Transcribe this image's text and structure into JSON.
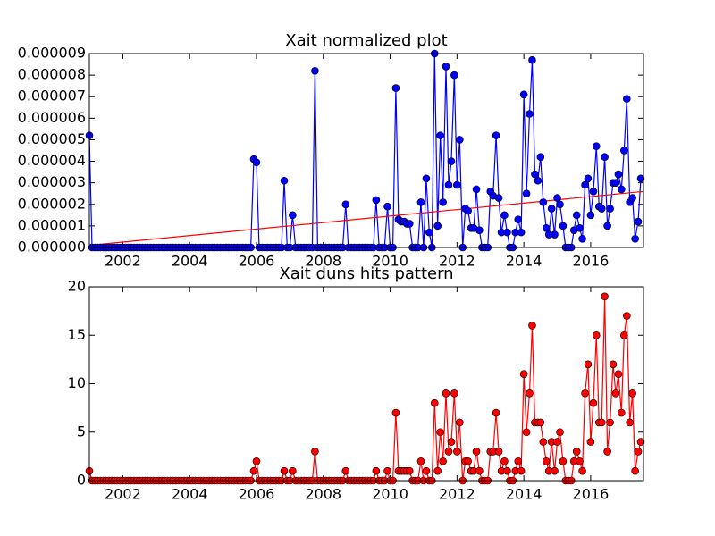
{
  "chart_data": [
    {
      "type": "line",
      "title": "Xait normalized plot",
      "x": [
        2001,
        2001.08,
        2001.17,
        2001.25,
        2001.33,
        2001.42,
        2001.5,
        2001.58,
        2001.67,
        2001.75,
        2001.83,
        2001.92,
        2002,
        2002.08,
        2002.17,
        2002.25,
        2002.33,
        2002.42,
        2002.5,
        2002.58,
        2002.67,
        2002.75,
        2002.83,
        2002.92,
        2003,
        2003.08,
        2003.17,
        2003.25,
        2003.33,
        2003.42,
        2003.5,
        2003.58,
        2003.67,
        2003.75,
        2003.83,
        2003.92,
        2004,
        2004.08,
        2004.17,
        2004.25,
        2004.33,
        2004.42,
        2004.5,
        2004.58,
        2004.67,
        2004.75,
        2004.83,
        2004.92,
        2005,
        2005.08,
        2005.17,
        2005.25,
        2005.33,
        2005.42,
        2005.5,
        2005.58,
        2005.67,
        2005.75,
        2005.83,
        2005.92,
        2006,
        2006.08,
        2006.17,
        2006.25,
        2006.33,
        2006.42,
        2006.5,
        2006.58,
        2006.67,
        2006.75,
        2006.83,
        2006.92,
        2007,
        2007.08,
        2007.17,
        2007.25,
        2007.33,
        2007.42,
        2007.5,
        2007.58,
        2007.67,
        2007.75,
        2007.83,
        2007.92,
        2008,
        2008.08,
        2008.17,
        2008.25,
        2008.33,
        2008.42,
        2008.5,
        2008.58,
        2008.67,
        2008.75,
        2008.83,
        2008.92,
        2009,
        2009.08,
        2009.17,
        2009.25,
        2009.33,
        2009.42,
        2009.5,
        2009.58,
        2009.67,
        2009.75,
        2009.83,
        2009.92,
        2010,
        2010.08,
        2010.17,
        2010.25,
        2010.33,
        2010.42,
        2010.5,
        2010.58,
        2010.67,
        2010.75,
        2010.83,
        2010.92,
        2011,
        2011.08,
        2011.17,
        2011.25,
        2011.33,
        2011.42,
        2011.5,
        2011.58,
        2011.67,
        2011.75,
        2011.83,
        2011.92,
        2012,
        2012.08,
        2012.17,
        2012.25,
        2012.33,
        2012.42,
        2012.5,
        2012.58,
        2012.67,
        2012.75,
        2012.83,
        2012.92,
        2013,
        2013.08,
        2013.17,
        2013.25,
        2013.33,
        2013.42,
        2013.5,
        2013.58,
        2013.67,
        2013.75,
        2013.83,
        2013.92,
        2014,
        2014.08,
        2014.17,
        2014.25,
        2014.33,
        2014.42,
        2014.5,
        2014.58,
        2014.67,
        2014.75,
        2014.83,
        2014.92,
        2015,
        2015.08,
        2015.17,
        2015.25,
        2015.33,
        2015.42,
        2015.5,
        2015.58,
        2015.67,
        2015.75,
        2015.83,
        2015.92,
        2016,
        2016.08,
        2016.17,
        2016.25,
        2016.33,
        2016.42,
        2016.5,
        2016.58,
        2016.67,
        2016.75,
        2016.83,
        2016.92,
        2017,
        2017.08,
        2017.17,
        2017.25,
        2017.33,
        2017.42,
        2017.5
      ],
      "series": [
        {
          "color": "#0000ff",
          "values": [
            5.2e-06,
            0,
            0,
            0,
            0,
            0,
            0,
            0,
            0,
            0,
            0,
            0,
            0,
            0,
            0,
            0,
            0,
            0,
            0,
            0,
            0,
            0,
            0,
            0,
            0,
            0,
            0,
            0,
            0,
            0,
            0,
            0,
            0,
            0,
            0,
            0,
            0,
            0,
            0,
            0,
            0,
            0,
            0,
            0,
            0,
            0,
            0,
            0,
            0,
            0,
            0,
            0,
            0,
            0,
            0,
            0,
            0,
            0,
            0,
            4.1e-06,
            3.95e-06,
            0,
            0,
            0,
            0,
            0,
            0,
            0,
            0,
            0,
            3.1e-06,
            0,
            0,
            1.5e-06,
            0,
            0,
            0,
            0,
            0,
            0,
            0,
            8.2e-06,
            0,
            0,
            0,
            0,
            0,
            0,
            0,
            0,
            0,
            0,
            2e-06,
            0,
            0,
            0,
            0,
            0,
            0,
            0,
            0,
            0,
            0,
            2.2e-06,
            0,
            0,
            0,
            1.9e-06,
            0,
            0,
            7.4e-06,
            1.3e-06,
            1.2e-06,
            1.2e-06,
            1.1e-06,
            1.1e-06,
            0,
            0,
            0,
            2.1e-06,
            0,
            3.2e-06,
            7e-07,
            0,
            9e-06,
            1e-06,
            5.2e-06,
            2.1e-06,
            8.4e-06,
            2.9e-06,
            4e-06,
            8e-06,
            2.9e-06,
            5e-06,
            0,
            1.8e-06,
            1.7e-06,
            9e-07,
            9e-07,
            2.7e-06,
            8e-07,
            0,
            0,
            0,
            2.6e-06,
            2.4e-06,
            5.2e-06,
            2.3e-06,
            7e-07,
            1.5e-06,
            7e-07,
            0,
            0,
            7e-07,
            1.3e-06,
            7e-07,
            7.1e-06,
            2.5e-06,
            6.2e-06,
            8.7e-06,
            3.4e-06,
            3.1e-06,
            4.2e-06,
            2.1e-06,
            9e-07,
            6e-07,
            1.8e-06,
            6e-07,
            2.3e-06,
            2e-06,
            1e-06,
            0,
            0,
            0,
            8e-07,
            1.5e-06,
            9e-07,
            4e-07,
            2.9e-06,
            3.2e-06,
            1.5e-06,
            2.6e-06,
            4.7e-06,
            1.9e-06,
            1.8e-06,
            4.2e-06,
            1e-06,
            1.8e-06,
            3e-06,
            3e-06,
            3.4e-06,
            2.7e-06,
            4.5e-06,
            6.9e-06,
            2.1e-06,
            2.3e-06,
            4e-07,
            1.2e-06,
            3.2e-06
          ]
        }
      ],
      "trend": {
        "color": "#ff0000",
        "x": [
          2001,
          2017.58
        ],
        "values": [
          1e-07,
          2.6e-06
        ]
      },
      "xlim": [
        2001,
        2017.58
      ],
      "xticks": [
        2002,
        2004,
        2006,
        2008,
        2010,
        2012,
        2014,
        2016
      ],
      "ylim": [
        0,
        9e-06
      ],
      "yticks": [
        {
          "value": 0,
          "label": "0.000000"
        },
        {
          "value": 1e-06,
          "label": "0.000001"
        },
        {
          "value": 2e-06,
          "label": "0.000002"
        },
        {
          "value": 3e-06,
          "label": "0.000003"
        },
        {
          "value": 4e-06,
          "label": "0.000004"
        },
        {
          "value": 5e-06,
          "label": "0.000005"
        },
        {
          "value": 6e-06,
          "label": "0.000006"
        },
        {
          "value": 7e-06,
          "label": "0.000007"
        },
        {
          "value": 8e-06,
          "label": "0.000008"
        },
        {
          "value": 9e-06,
          "label": "0.000009"
        }
      ]
    },
    {
      "type": "line",
      "title": "Xait duns hits pattern",
      "x": [
        2001,
        2001.08,
        2001.17,
        2001.25,
        2001.33,
        2001.42,
        2001.5,
        2001.58,
        2001.67,
        2001.75,
        2001.83,
        2001.92,
        2002,
        2002.08,
        2002.17,
        2002.25,
        2002.33,
        2002.42,
        2002.5,
        2002.58,
        2002.67,
        2002.75,
        2002.83,
        2002.92,
        2003,
        2003.08,
        2003.17,
        2003.25,
        2003.33,
        2003.42,
        2003.5,
        2003.58,
        2003.67,
        2003.75,
        2003.83,
        2003.92,
        2004,
        2004.08,
        2004.17,
        2004.25,
        2004.33,
        2004.42,
        2004.5,
        2004.58,
        2004.67,
        2004.75,
        2004.83,
        2004.92,
        2005,
        2005.08,
        2005.17,
        2005.25,
        2005.33,
        2005.42,
        2005.5,
        2005.58,
        2005.67,
        2005.75,
        2005.83,
        2005.92,
        2006,
        2006.08,
        2006.17,
        2006.25,
        2006.33,
        2006.42,
        2006.5,
        2006.58,
        2006.67,
        2006.75,
        2006.83,
        2006.92,
        2007,
        2007.08,
        2007.17,
        2007.25,
        2007.33,
        2007.42,
        2007.5,
        2007.58,
        2007.67,
        2007.75,
        2007.83,
        2007.92,
        2008,
        2008.08,
        2008.17,
        2008.25,
        2008.33,
        2008.42,
        2008.5,
        2008.58,
        2008.67,
        2008.75,
        2008.83,
        2008.92,
        2009,
        2009.08,
        2009.17,
        2009.25,
        2009.33,
        2009.42,
        2009.5,
        2009.58,
        2009.67,
        2009.75,
        2009.83,
        2009.92,
        2010,
        2010.08,
        2010.17,
        2010.25,
        2010.33,
        2010.42,
        2010.5,
        2010.58,
        2010.67,
        2010.75,
        2010.83,
        2010.92,
        2011,
        2011.08,
        2011.17,
        2011.25,
        2011.33,
        2011.42,
        2011.5,
        2011.58,
        2011.67,
        2011.75,
        2011.83,
        2011.92,
        2012,
        2012.08,
        2012.17,
        2012.25,
        2012.33,
        2012.42,
        2012.5,
        2012.58,
        2012.67,
        2012.75,
        2012.83,
        2012.92,
        2013,
        2013.08,
        2013.17,
        2013.25,
        2013.33,
        2013.42,
        2013.5,
        2013.58,
        2013.67,
        2013.75,
        2013.83,
        2013.92,
        2014,
        2014.08,
        2014.17,
        2014.25,
        2014.33,
        2014.42,
        2014.5,
        2014.58,
        2014.67,
        2014.75,
        2014.83,
        2014.92,
        2015,
        2015.08,
        2015.17,
        2015.25,
        2015.33,
        2015.42,
        2015.5,
        2015.58,
        2015.67,
        2015.75,
        2015.83,
        2015.92,
        2016,
        2016.08,
        2016.17,
        2016.25,
        2016.33,
        2016.42,
        2016.5,
        2016.58,
        2016.67,
        2016.75,
        2016.83,
        2016.92,
        2017,
        2017.08,
        2017.17,
        2017.25,
        2017.33,
        2017.42,
        2017.5
      ],
      "series": [
        {
          "color": "#ff0000",
          "values": [
            1,
            0,
            0,
            0,
            0,
            0,
            0,
            0,
            0,
            0,
            0,
            0,
            0,
            0,
            0,
            0,
            0,
            0,
            0,
            0,
            0,
            0,
            0,
            0,
            0,
            0,
            0,
            0,
            0,
            0,
            0,
            0,
            0,
            0,
            0,
            0,
            0,
            0,
            0,
            0,
            0,
            0,
            0,
            0,
            0,
            0,
            0,
            0,
            0,
            0,
            0,
            0,
            0,
            0,
            0,
            0,
            0,
            0,
            0,
            1,
            2,
            0,
            0,
            0,
            0,
            0,
            0,
            0,
            0,
            0,
            1,
            0,
            0,
            1,
            0,
            0,
            0,
            0,
            0,
            0,
            0,
            3,
            0,
            0,
            0,
            0,
            0,
            0,
            0,
            0,
            0,
            0,
            1,
            0,
            0,
            0,
            0,
            0,
            0,
            0,
            0,
            0,
            0,
            1,
            0,
            0,
            0,
            1,
            0,
            0,
            7,
            1,
            1,
            1,
            1,
            1,
            0,
            0,
            0,
            2,
            0,
            1,
            0,
            0,
            8,
            1,
            5,
            2,
            9,
            3,
            4,
            9,
            3,
            6,
            0,
            2,
            2,
            1,
            1,
            3,
            1,
            0,
            0,
            0,
            3,
            3,
            7,
            3,
            1,
            2,
            1,
            0,
            0,
            1,
            2,
            1,
            11,
            5,
            9,
            16,
            6,
            6,
            6,
            4,
            2,
            1,
            4,
            1,
            4,
            5,
            2,
            0,
            0,
            0,
            2,
            3,
            2,
            1,
            9,
            12,
            4,
            8,
            15,
            6,
            6,
            19,
            3,
            6,
            12,
            9,
            11,
            7,
            15,
            17,
            6,
            9,
            1,
            3,
            4
          ]
        }
      ],
      "xlim": [
        2001,
        2017.58
      ],
      "xticks": [
        2002,
        2004,
        2006,
        2008,
        2010,
        2012,
        2014,
        2016
      ],
      "ylim": [
        0,
        20
      ],
      "yticks": [
        0,
        5,
        10,
        15,
        20
      ]
    }
  ]
}
